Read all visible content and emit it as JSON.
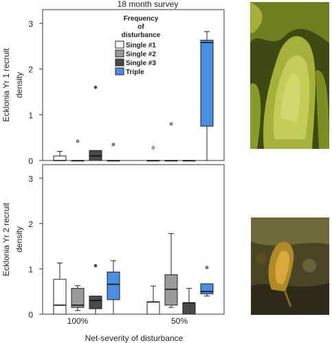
{
  "chart_data": {
    "type": "box",
    "title": "18 month survey",
    "xlabel": "Net-severity of disturbance",
    "categories": [
      "100%",
      "50%"
    ],
    "legend": {
      "title_lines": [
        "Frequency",
        "of",
        "disturbance"
      ],
      "placement": "top-center",
      "entries": [
        {
          "name": "Single #1",
          "color": "#ffffff"
        },
        {
          "name": "Single #2",
          "color": "#9a9a9a"
        },
        {
          "name": "Single #3",
          "color": "#4a4a4a"
        },
        {
          "name": "Triple",
          "color": "#4a90e2"
        }
      ]
    },
    "panels": [
      {
        "ylabel_lines": [
          "Ecklonia Yr 1 recruit",
          "density"
        ],
        "ylim": [
          0,
          3.3
        ],
        "yticks": [
          0,
          1,
          2,
          3
        ],
        "groups": [
          {
            "category": "100%",
            "boxes": [
              {
                "series": "Single #1",
                "min": 0,
                "q1": 0,
                "median": 0,
                "q3": 0.1,
                "max": 0.2,
                "outliers": []
              },
              {
                "series": "Single #2",
                "min": 0,
                "q1": 0,
                "median": 0,
                "q3": 0,
                "max": 0,
                "outliers": [
                  0.42
                ]
              },
              {
                "series": "Single #3",
                "min": 0,
                "q1": 0,
                "median": 0.1,
                "q3": 0.22,
                "max": 0.22,
                "outliers": [
                  1.6
                ]
              },
              {
                "series": "Triple",
                "min": 0,
                "q1": 0,
                "median": 0,
                "q3": 0,
                "max": 0,
                "outliers": [
                  0.35
                ]
              }
            ]
          },
          {
            "category": "50%",
            "boxes": [
              {
                "series": "Single #1",
                "min": 0,
                "q1": 0,
                "median": 0,
                "q3": 0,
                "max": 0,
                "outliers": [
                  0.28
                ]
              },
              {
                "series": "Single #2",
                "min": 0,
                "q1": 0,
                "median": 0,
                "q3": 0,
                "max": 0,
                "outliers": [
                  0.8
                ]
              },
              {
                "series": "Single #3",
                "min": 0,
                "q1": 0,
                "median": 0,
                "q3": 0,
                "max": 0,
                "outliers": []
              },
              {
                "series": "Triple",
                "min": 0,
                "q1": 0.75,
                "median": 2.58,
                "q3": 2.63,
                "max": 2.82,
                "outliers": []
              }
            ]
          }
        ]
      },
      {
        "ylabel_lines": [
          "Ecklonia Yr 2 recruit",
          "density"
        ],
        "ylim": [
          0,
          3.3
        ],
        "yticks": [
          0,
          1,
          2,
          3
        ],
        "groups": [
          {
            "category": "100%",
            "boxes": [
              {
                "series": "Single #1",
                "min": 0,
                "q1": 0,
                "median": 0.2,
                "q3": 0.77,
                "max": 1.13,
                "outliers": []
              },
              {
                "series": "Single #2",
                "min": 0.08,
                "q1": 0.15,
                "median": 0.2,
                "q3": 0.57,
                "max": 0.63,
                "outliers": []
              },
              {
                "series": "Single #3",
                "min": 0,
                "q1": 0.12,
                "median": 0.3,
                "q3": 0.4,
                "max": 0.4,
                "outliers": [
                  1.07
                ]
              },
              {
                "series": "Triple",
                "min": 0,
                "q1": 0.32,
                "median": 0.66,
                "q3": 0.93,
                "max": 1.18,
                "outliers": []
              }
            ]
          },
          {
            "category": "50%",
            "boxes": [
              {
                "series": "Single #1",
                "min": 0,
                "q1": 0,
                "median": 0.27,
                "q3": 0.27,
                "max": 0.62,
                "outliers": []
              },
              {
                "series": "Single #2",
                "min": 0.15,
                "q1": 0.2,
                "median": 0.55,
                "q3": 0.87,
                "max": 1.78,
                "outliers": []
              },
              {
                "series": "Single #3",
                "min": 0,
                "q1": 0,
                "median": 0.25,
                "q3": 0.25,
                "max": 0.57,
                "outliers": []
              },
              {
                "series": "Triple",
                "min": 0.4,
                "q1": 0.45,
                "median": 0.5,
                "q3": 0.67,
                "max": 0.67,
                "outliers": [
                  1.03
                ]
              }
            ]
          }
        ]
      }
    ],
    "grid": false
  },
  "photos": [
    {
      "subject": "kelp-frond-photo",
      "colors": [
        "#3e4a12",
        "#8a9a2a",
        "#b9c447",
        "#d2d86a"
      ]
    },
    {
      "subject": "kelp-recruit-photo",
      "colors": [
        "#2c2a18",
        "#6b5a1e",
        "#b08a26",
        "#d7a93a"
      ]
    }
  ]
}
